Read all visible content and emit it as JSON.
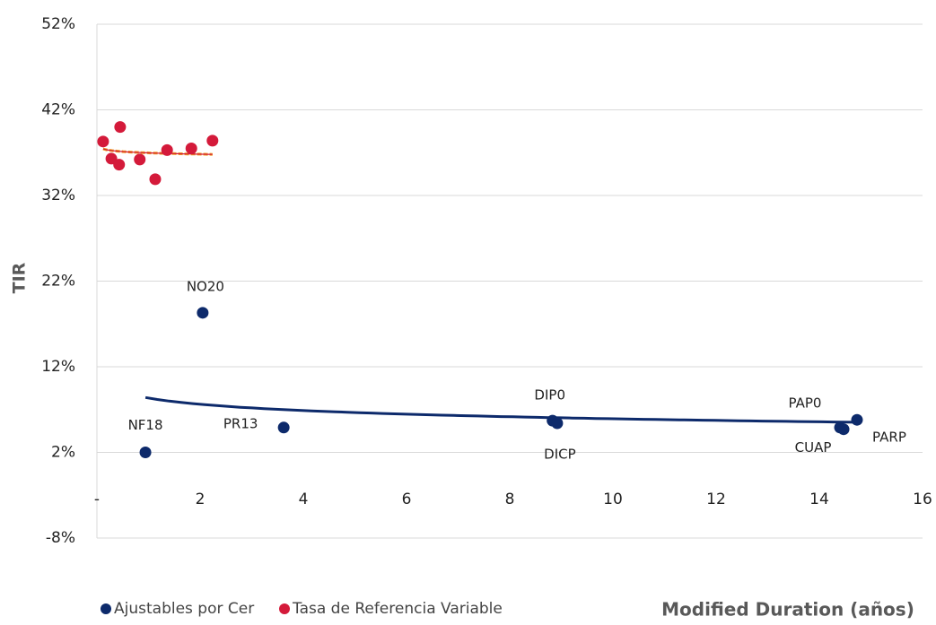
{
  "chart_data": {
    "type": "scatter",
    "y_label": "TIR",
    "x_label": "Modified Duration (años)",
    "xlim": [
      0,
      16
    ],
    "ylim": [
      -8,
      52
    ],
    "xticks": [
      {
        "value": 0,
        "label": "-"
      },
      2,
      4,
      6,
      8,
      10,
      12,
      14,
      16
    ],
    "yticks": [
      {
        "value": -8,
        "label": "-8%"
      },
      {
        "value": 2,
        "label": "2%"
      },
      {
        "value": 12,
        "label": "12%"
      },
      {
        "value": 22,
        "label": "22%"
      },
      {
        "value": 32,
        "label": "32%"
      },
      {
        "value": 42,
        "label": "42%"
      },
      {
        "value": 52,
        "label": "52%"
      }
    ],
    "grid": true,
    "legend": "bottom-left",
    "trendline": "logarithmic",
    "series": [
      {
        "name": "Ajustables por Cer",
        "color": "#0d2a6b",
        "trend_color": "#0d2a6b",
        "labels": [
          "NF18",
          "NO20",
          "PR13",
          "DIP0",
          "DICP",
          "PAP0",
          "CUAP",
          "PARP"
        ],
        "x": [
          0.94,
          2.05,
          3.62,
          8.83,
          8.92,
          14.4,
          14.47,
          14.73
        ],
        "values": [
          2.0,
          18.3,
          4.9,
          5.7,
          5.4,
          4.9,
          4.7,
          5.8
        ]
      },
      {
        "name": "Tasa de Referencia Variable",
        "color": "#d41a3a",
        "trend_color": "#f0a020",
        "x": [
          0.12,
          0.28,
          0.43,
          0.45,
          0.83,
          1.13,
          1.36,
          1.83,
          2.24
        ],
        "values": [
          38.3,
          36.3,
          35.6,
          40.0,
          36.2,
          33.9,
          37.3,
          37.5,
          38.4
        ]
      }
    ]
  }
}
